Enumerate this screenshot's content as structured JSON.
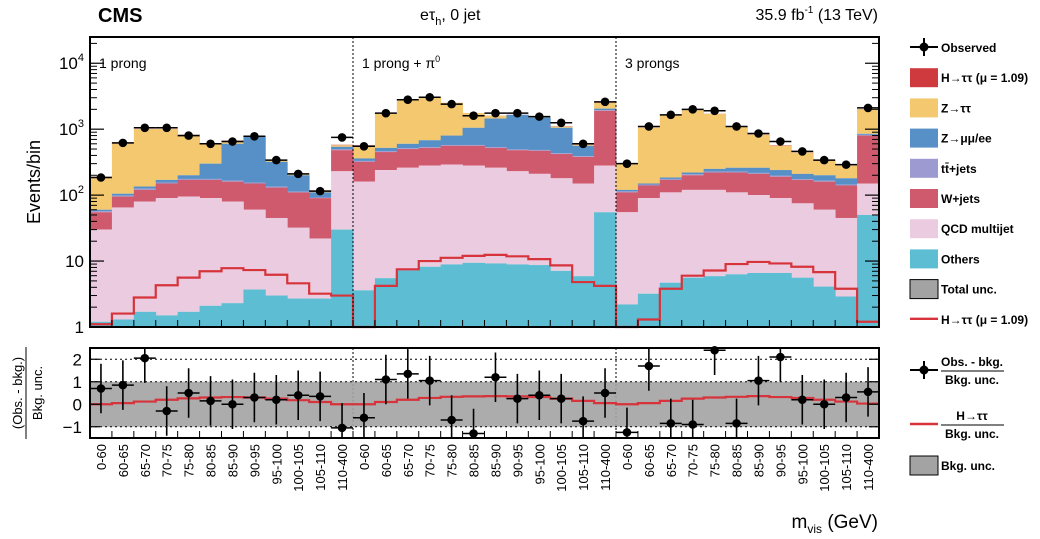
{
  "header": {
    "experiment": "CMS",
    "channel_main": "eτ",
    "channel_sub": "h",
    "channel_suffix": ", 0 jet",
    "lumi_main": "35.9 fb",
    "lumi_sup": "-1",
    "lumi_suffix": " (13 TeV)"
  },
  "chart_data": [
    {
      "type": "area",
      "subtype": "stacked-histogram",
      "ylabel": "Events/bin",
      "yscale": "log",
      "ylim": [
        1,
        25000
      ],
      "y_ticks": [
        {
          "label": "1",
          "base": "",
          "exp": ""
        },
        {
          "label": "10",
          "base": "",
          "exp": ""
        },
        {
          "label": "",
          "base": "10",
          "exp": "2"
        },
        {
          "label": "",
          "base": "10",
          "exp": "3"
        },
        {
          "label": "",
          "base": "10",
          "exp": "4"
        }
      ],
      "categories": [
        "0-60",
        "60-65",
        "65-70",
        "70-75",
        "75-80",
        "80-85",
        "85-90",
        "90-95",
        "95-100",
        "100-105",
        "105-110",
        "110-400",
        "0-60",
        "60-65",
        "65-70",
        "70-75",
        "75-80",
        "80-85",
        "85-90",
        "90-95",
        "95-100",
        "100-105",
        "105-110",
        "110-400",
        "0-60",
        "60-65",
        "65-70",
        "70-75",
        "75-80",
        "80-85",
        "85-90",
        "90-95",
        "95-100",
        "100-105",
        "105-110",
        "110-400"
      ],
      "regions": [
        {
          "label": "1 prong",
          "sup": ""
        },
        {
          "label": "1 prong + π",
          "sup": "0"
        },
        {
          "label": "3 prongs",
          "sup": ""
        }
      ],
      "stack": [
        {
          "name": "Others",
          "color": "#5dbdd3",
          "values": [
            1.2,
            1.3,
            1.7,
            1.5,
            1.7,
            2.1,
            2.3,
            3.7,
            3.0,
            2.7,
            2.7,
            30,
            3.6,
            5.5,
            7.2,
            8.2,
            8.9,
            9.4,
            9.2,
            8.9,
            8.7,
            7.1,
            5.9,
            55,
            2.2,
            3.2,
            4.7,
            5.6,
            5.9,
            6.3,
            6.6,
            6.6,
            5.6,
            4.1,
            2.9,
            50
          ]
        },
        {
          "name": "QCD multijet",
          "color": "#ebcbe0",
          "values": [
            30,
            65,
            80,
            90,
            95,
            90,
            80,
            60,
            45,
            32,
            22,
            230,
            160,
            240,
            260,
            280,
            290,
            280,
            260,
            230,
            210,
            180,
            150,
            280,
            55,
            90,
            110,
            120,
            120,
            110,
            100,
            90,
            75,
            60,
            45,
            150
          ]
        },
        {
          "name": "W+jets",
          "color": "#d05a6d",
          "values": [
            55,
            95,
            120,
            150,
            170,
            170,
            160,
            150,
            130,
            110,
            90,
            480,
            320,
            450,
            500,
            520,
            560,
            560,
            520,
            480,
            470,
            420,
            380,
            1900,
            110,
            140,
            170,
            200,
            220,
            220,
            210,
            190,
            170,
            160,
            140,
            800
          ]
        },
        {
          "name": "tt̄+jets",
          "color": "#9c9ad0",
          "values": [
            57,
            98,
            125,
            155,
            176,
            176,
            166,
            155,
            134,
            113,
            92,
            500,
            330,
            465,
            515,
            535,
            576,
            576,
            535,
            494,
            484,
            432,
            390,
            1950,
            114,
            145,
            176,
            207,
            227,
            227,
            217,
            196,
            175,
            165,
            144,
            820
          ]
        },
        {
          "name": "Z→μμ/ee",
          "color": "#5690c7",
          "values": [
            60,
            105,
            135,
            170,
            200,
            300,
            600,
            780,
            320,
            200,
            110,
            540,
            360,
            520,
            600,
            680,
            800,
            1050,
            1450,
            1650,
            1500,
            1050,
            560,
            2050,
            120,
            150,
            185,
            220,
            250,
            260,
            260,
            240,
            210,
            200,
            180,
            850
          ]
        },
        {
          "name": "Z→ττ",
          "color": "#f3c86f",
          "values": [
            185,
            600,
            1000,
            1000,
            820,
            600,
            660,
            760,
            340,
            205,
            115,
            570,
            560,
            1700,
            2800,
            3050,
            2500,
            1750,
            1600,
            1650,
            1550,
            1100,
            580,
            2500,
            300,
            1050,
            1650,
            1950,
            1700,
            1100,
            820,
            560,
            440,
            330,
            280,
            2000
          ]
        },
        {
          "name": "H→ττ (μ = 1.09)",
          "color": "#cf3a3f",
          "values": [
            190,
            610,
            1010,
            1010,
            830,
            610,
            670,
            770,
            345,
            210,
            118,
            580,
            570,
            1710,
            2810,
            3060,
            2510,
            1760,
            1610,
            1660,
            1560,
            1110,
            590,
            2520,
            305,
            1060,
            1660,
            1960,
            1710,
            1110,
            830,
            570,
            445,
            335,
            285,
            2020
          ]
        }
      ],
      "signal_line": {
        "name": "H→ττ (μ = 1.09)",
        "color": "#d6333a",
        "values": [
          1.1,
          1.6,
          2.8,
          4.3,
          5.6,
          7.0,
          7.8,
          7.3,
          6.2,
          4.6,
          3.2,
          3.0,
          1.0,
          4.2,
          7.5,
          10.0,
          11.2,
          12.0,
          12.4,
          11.8,
          10.7,
          8.6,
          4.8,
          4.2,
          1.0,
          1.3,
          3.8,
          6.0,
          7.2,
          9.0,
          9.7,
          9.2,
          8.2,
          6.8,
          3.8,
          1.2
        ]
      },
      "observed": {
        "name": "Observed",
        "values": [
          185,
          620,
          1050,
          1050,
          800,
          600,
          650,
          780,
          340,
          210,
          115,
          750,
          550,
          1750,
          2800,
          3050,
          2400,
          1600,
          1750,
          1750,
          1550,
          1250,
          600,
          2600,
          300,
          1100,
          1650,
          2000,
          1900,
          1100,
          860,
          650,
          460,
          340,
          290,
          2100
        ]
      }
    },
    {
      "type": "scatter",
      "subtype": "significance-ratio",
      "ylabel_num": "(Obs. - bkg.)",
      "ylabel_den": "Bkg. unc.",
      "ylim": [
        -1.5,
        2.5
      ],
      "y_ticks": [
        "−1",
        "0",
        "1",
        "2"
      ],
      "xlabel": "m",
      "xlabel_sub": "vis",
      "xlabel_unit": " (GeV)",
      "band": {
        "name": "Bkg. unc.",
        "range": [
          -1,
          1
        ],
        "color": "#a3a3a3"
      },
      "signal_line": {
        "name": "H→ττ / Bkg. unc.",
        "color": "#d6333a",
        "values": [
          0.0,
          0.05,
          0.12,
          0.2,
          0.26,
          0.3,
          0.32,
          0.3,
          0.25,
          0.18,
          0.1,
          0.0,
          0.0,
          0.1,
          0.2,
          0.28,
          0.33,
          0.35,
          0.36,
          0.35,
          0.32,
          0.25,
          0.15,
          0.05,
          0.0,
          0.05,
          0.15,
          0.25,
          0.3,
          0.33,
          0.36,
          0.32,
          0.28,
          0.2,
          0.12,
          0.03
        ]
      },
      "points": {
        "name": "Obs. - bkg. / Bkg. unc.",
        "values": [
          0.7,
          0.85,
          2.05,
          -0.3,
          0.5,
          0.15,
          0.0,
          0.3,
          0.2,
          0.4,
          0.35,
          -1.05,
          -0.6,
          1.1,
          1.35,
          1.05,
          -0.7,
          -1.3,
          1.2,
          0.25,
          0.4,
          0.25,
          -0.75,
          0.5,
          -1.25,
          1.7,
          -0.85,
          -0.9,
          2.4,
          -0.85,
          1.05,
          2.1,
          0.2,
          0.0,
          0.3,
          0.55
        ],
        "errors": [
          1.1,
          1.1,
          1.1,
          1.1,
          1.1,
          1.1,
          1.1,
          1.1,
          1.1,
          1.1,
          1.1,
          1.1,
          1.1,
          1.1,
          1.1,
          1.1,
          1.1,
          1.1,
          1.1,
          1.1,
          1.1,
          1.1,
          1.1,
          1.1,
          1.1,
          1.1,
          1.1,
          1.1,
          1.1,
          1.1,
          1.1,
          1.1,
          1.1,
          1.1,
          1.1,
          1.1
        ]
      }
    }
  ],
  "legend_top": [
    {
      "label": "Observed",
      "kind": "point"
    },
    {
      "label": "H→ττ (μ = 1.09)",
      "kind": "box",
      "color": "#cf3a3f"
    },
    {
      "label": "Z→ττ",
      "kind": "box",
      "color": "#f3c86f"
    },
    {
      "label": "Z→μμ/ee",
      "kind": "box",
      "color": "#5690c7"
    },
    {
      "label": "tt̄+jets",
      "kind": "box",
      "color": "#9c9ad0"
    },
    {
      "label": "W+jets",
      "kind": "box",
      "color": "#d05a6d"
    },
    {
      "label": "QCD multijet",
      "kind": "box",
      "color": "#ebcbe0"
    },
    {
      "label": "Others",
      "kind": "box",
      "color": "#5dbdd3"
    },
    {
      "label": "Total unc.",
      "kind": "box",
      "color": "#a3a3a3"
    },
    {
      "label": "H→ττ (μ = 1.09)",
      "kind": "line",
      "color": "#d6333a"
    }
  ],
  "legend_bottom": [
    {
      "num": "Obs. - bkg.",
      "den": "Bkg. unc.",
      "kind": "point"
    },
    {
      "num": "H→ττ",
      "den": "Bkg. unc.",
      "kind": "line",
      "color": "#d6333a"
    },
    {
      "label": "Bkg. unc.",
      "kind": "box",
      "color": "#a3a3a3"
    }
  ]
}
